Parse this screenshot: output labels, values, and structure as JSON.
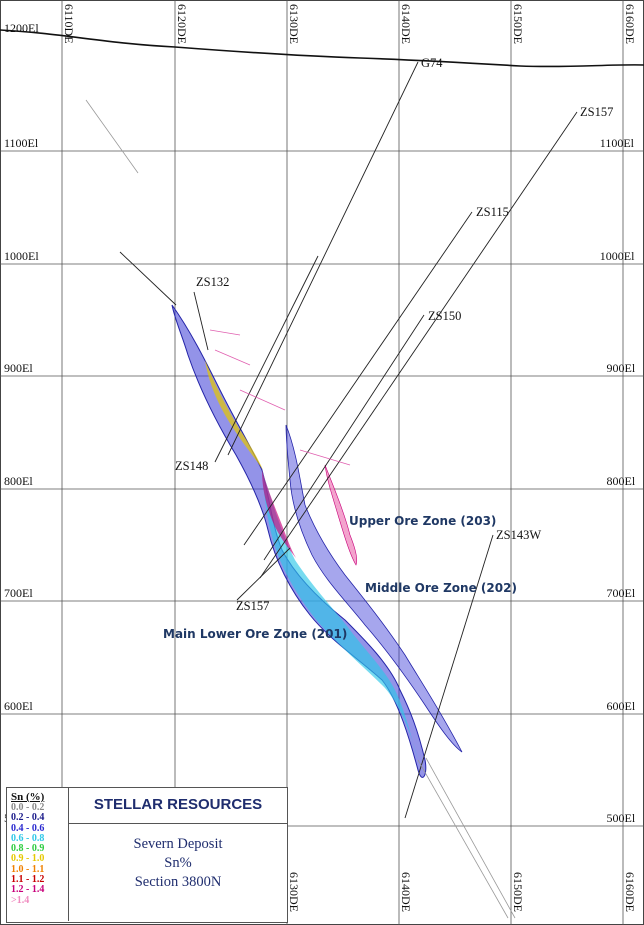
{
  "elevations": [
    {
      "label": "1200El",
      "right": false
    },
    {
      "label": "1100El",
      "right": true
    },
    {
      "label": "1000El",
      "right": true
    },
    {
      "label": "900El",
      "right": true
    },
    {
      "label": "800El",
      "right": true
    },
    {
      "label": "700El",
      "right": true
    },
    {
      "label": "600El",
      "right": true
    },
    {
      "label": "500El",
      "right": true
    }
  ],
  "eastings": [
    "6110DE",
    "6120DE",
    "6130DE",
    "6140DE",
    "6150DE",
    "6160DE"
  ],
  "eastings_bottom": [
    "6130DE",
    "6140DE",
    "6150DE",
    "6160DE"
  ],
  "drillholes": [
    "G74",
    "ZS157",
    "ZS115",
    "ZS150",
    "ZS132",
    "ZS148",
    "ZS157",
    "ZS143W"
  ],
  "zones": [
    "Upper Ore Zone (203)",
    "Middle Ore Zone (202)",
    "Main Lower Ore Zone (201)"
  ],
  "legend": {
    "title": "Sn (%)",
    "items": [
      {
        "label": "0.0 - 0.2",
        "color": "#8a8a8a"
      },
      {
        "label": "0.2 - 0.4",
        "color": "#1a1a8a"
      },
      {
        "label": "0.4 - 0.6",
        "color": "#2a2ad0"
      },
      {
        "label": "0.6 - 0.8",
        "color": "#2ec8e8"
      },
      {
        "label": "0.8 - 0.9",
        "color": "#2ecc40"
      },
      {
        "label": "0.9 - 1.0",
        "color": "#e6c800"
      },
      {
        "label": "1.0 - 1.1",
        "color": "#f08000"
      },
      {
        "label": "1.1 - 1.2",
        "color": "#c80000"
      },
      {
        "label": "1.2 - 1.4",
        "color": "#c8007a"
      },
      {
        "label": ">1.4",
        "color": "#f08cc0"
      }
    ]
  },
  "info": {
    "company": "STELLAR RESOURCES",
    "deposit": "Severn Deposit",
    "measure": "Sn%",
    "section": "Section 3800N"
  }
}
